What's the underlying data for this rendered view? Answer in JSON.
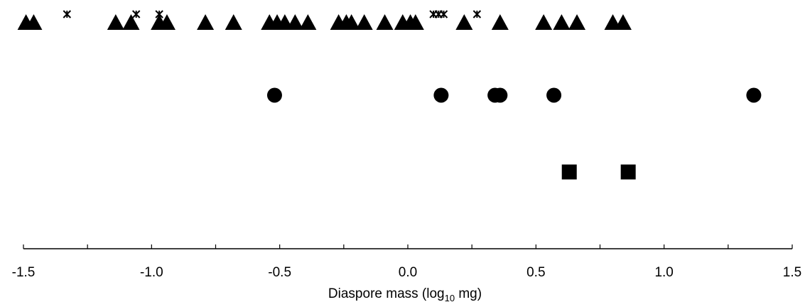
{
  "chart_data": {
    "type": "scatter",
    "title": "",
    "xlabel": {
      "prefix": "Diaspore mass (log",
      "subscript": "10",
      "suffix": " mg)"
    },
    "ylabel": "",
    "xlim": [
      -1.5,
      1.5
    ],
    "x_ticks": [
      -1.5,
      -1.0,
      -0.5,
      0.0,
      0.5,
      1.0,
      1.5
    ],
    "x_tick_labels": [
      "-1.5",
      "-1.0",
      "-0.5",
      "0.0",
      "0.5",
      "1.0",
      "1.5"
    ],
    "minor_tick_step": 0.25,
    "grid": false,
    "legend": "none",
    "marker_color": "#000000",
    "series": [
      {
        "marker": "triangle",
        "row": 1,
        "x": [
          -1.49,
          -1.46,
          -1.14,
          -1.08,
          -0.97,
          -0.94,
          -0.79,
          -0.68,
          -0.54,
          -0.51,
          -0.48,
          -0.44,
          -0.39,
          -0.27,
          -0.24,
          -0.22,
          -0.17,
          -0.09,
          -0.02,
          0.01,
          0.03,
          0.22,
          0.36,
          0.53,
          0.6,
          0.66,
          0.8,
          0.84
        ]
      },
      {
        "marker": "asterisk",
        "row": 1,
        "x": [
          -1.33,
          -1.06,
          -0.97,
          0.1,
          0.12,
          0.14,
          0.27
        ]
      },
      {
        "marker": "circle",
        "row": 2,
        "x": [
          -0.52,
          0.13,
          0.34,
          0.36,
          0.57,
          1.35
        ]
      },
      {
        "marker": "square",
        "row": 3,
        "x": [
          0.63,
          0.86
        ]
      }
    ]
  }
}
